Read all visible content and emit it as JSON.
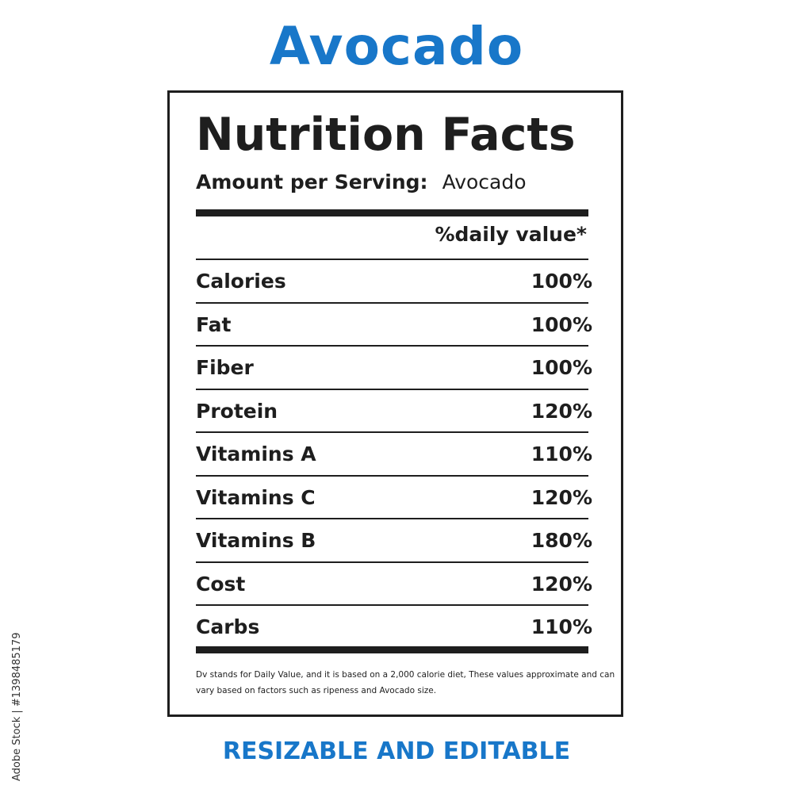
{
  "title": "Avocado",
  "label": {
    "heading": "Nutrition Facts",
    "serving_label": "Amount per Serving:",
    "serving_value": "Avocado",
    "dv_header": "%daily value*",
    "rows": [
      {
        "name": "Calories",
        "value": "100%"
      },
      {
        "name": "Fat",
        "value": "100%"
      },
      {
        "name": "Fiber",
        "value": "100%"
      },
      {
        "name": "Protein",
        "value": "120%"
      },
      {
        "name": "Vitamins A",
        "value": "110%"
      },
      {
        "name": "Vitamins C",
        "value": "120%"
      },
      {
        "name": "Vitamins B",
        "value": "180%"
      },
      {
        "name": "Cost",
        "value": "120%"
      },
      {
        "name": "Carbs",
        "value": "110%"
      }
    ],
    "footnote": "Dv stands for Daily Value, and it is based on a 2,000 calorie diet, These values approximate and can vary based on factors such as ripeness and Avocado size."
  },
  "footer_text": "RESIZABLE AND EDITABLE",
  "stock_id": "Adobe Stock | #1398485179",
  "colors": {
    "accent": "#1877c9",
    "text": "#1e1e1e"
  }
}
